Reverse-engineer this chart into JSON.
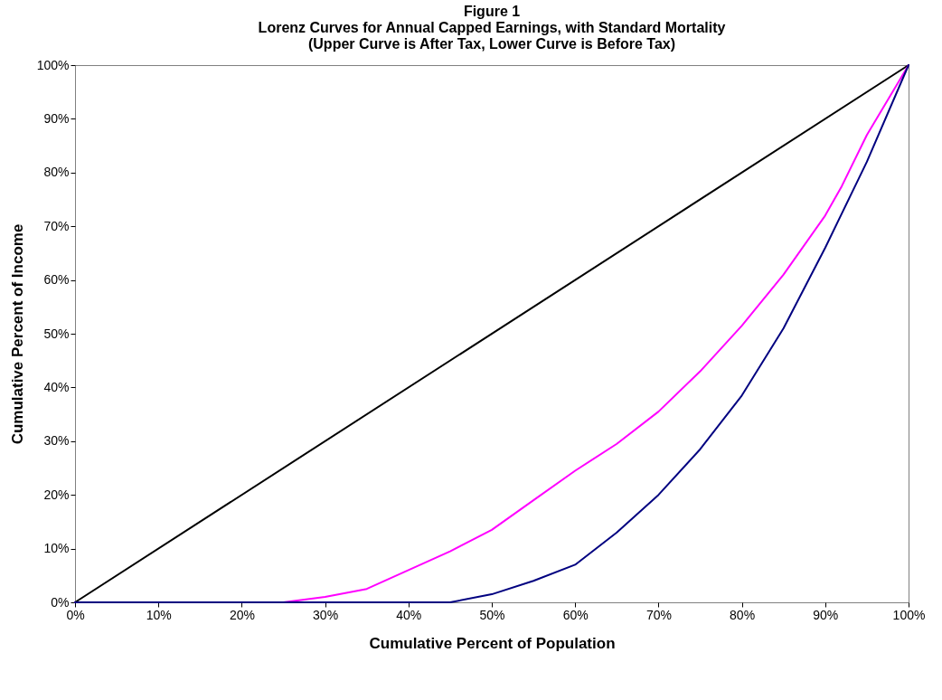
{
  "chart_data": {
    "type": "line",
    "title": "Figure 1",
    "subtitle": [
      "Lorenz Curves for Annual Capped Earnings, with Standard Mortality",
      "(Upper Curve is After Tax, Lower Curve is  Before Tax)"
    ],
    "xlabel": "Cumulative Percent of Population",
    "ylabel": "Cumulative Percent of Income",
    "xlim": [
      0,
      100
    ],
    "ylim": [
      0,
      100
    ],
    "xticks": [
      {
        "value": 0,
        "label": "0%"
      },
      {
        "value": 10,
        "label": "10%"
      },
      {
        "value": 20,
        "label": "20%"
      },
      {
        "value": 30,
        "label": "30%"
      },
      {
        "value": 40,
        "label": "40%"
      },
      {
        "value": 50,
        "label": "50%"
      },
      {
        "value": 60,
        "label": "60%"
      },
      {
        "value": 70,
        "label": "70%"
      },
      {
        "value": 80,
        "label": "80%"
      },
      {
        "value": 90,
        "label": "90%"
      },
      {
        "value": 100,
        "label": "100%"
      }
    ],
    "yticks": [
      {
        "value": 0,
        "label": "0%"
      },
      {
        "value": 10,
        "label": "10%"
      },
      {
        "value": 20,
        "label": "20%"
      },
      {
        "value": 30,
        "label": "30%"
      },
      {
        "value": 40,
        "label": "40%"
      },
      {
        "value": 50,
        "label": "50%"
      },
      {
        "value": 60,
        "label": "60%"
      },
      {
        "value": 70,
        "label": "70%"
      },
      {
        "value": 80,
        "label": "80%"
      },
      {
        "value": 90,
        "label": "90%"
      },
      {
        "value": 100,
        "label": "100%"
      }
    ],
    "grid": false,
    "legend": false,
    "marker": "none",
    "line_style": "solid",
    "series": [
      {
        "color": "#000000",
        "x": [
          0,
          100
        ],
        "values": [
          0,
          100
        ]
      },
      {
        "color": "#ff00ff",
        "x": [
          0,
          25,
          30,
          35,
          40,
          45,
          50,
          55,
          60,
          65,
          70,
          75,
          80,
          85,
          90,
          92,
          95,
          100
        ],
        "values": [
          0,
          0,
          1,
          2.5,
          6,
          9.5,
          13.5,
          19,
          24.5,
          29.5,
          35.5,
          43,
          51.5,
          61,
          72,
          77.5,
          87,
          100
        ]
      },
      {
        "color": "#000080",
        "x": [
          0,
          45,
          50,
          55,
          60,
          65,
          70,
          75,
          80,
          85,
          90,
          95,
          100
        ],
        "values": [
          0,
          0,
          1.5,
          4,
          7,
          13,
          20,
          28.5,
          38.5,
          51,
          66,
          82,
          100
        ]
      }
    ]
  }
}
